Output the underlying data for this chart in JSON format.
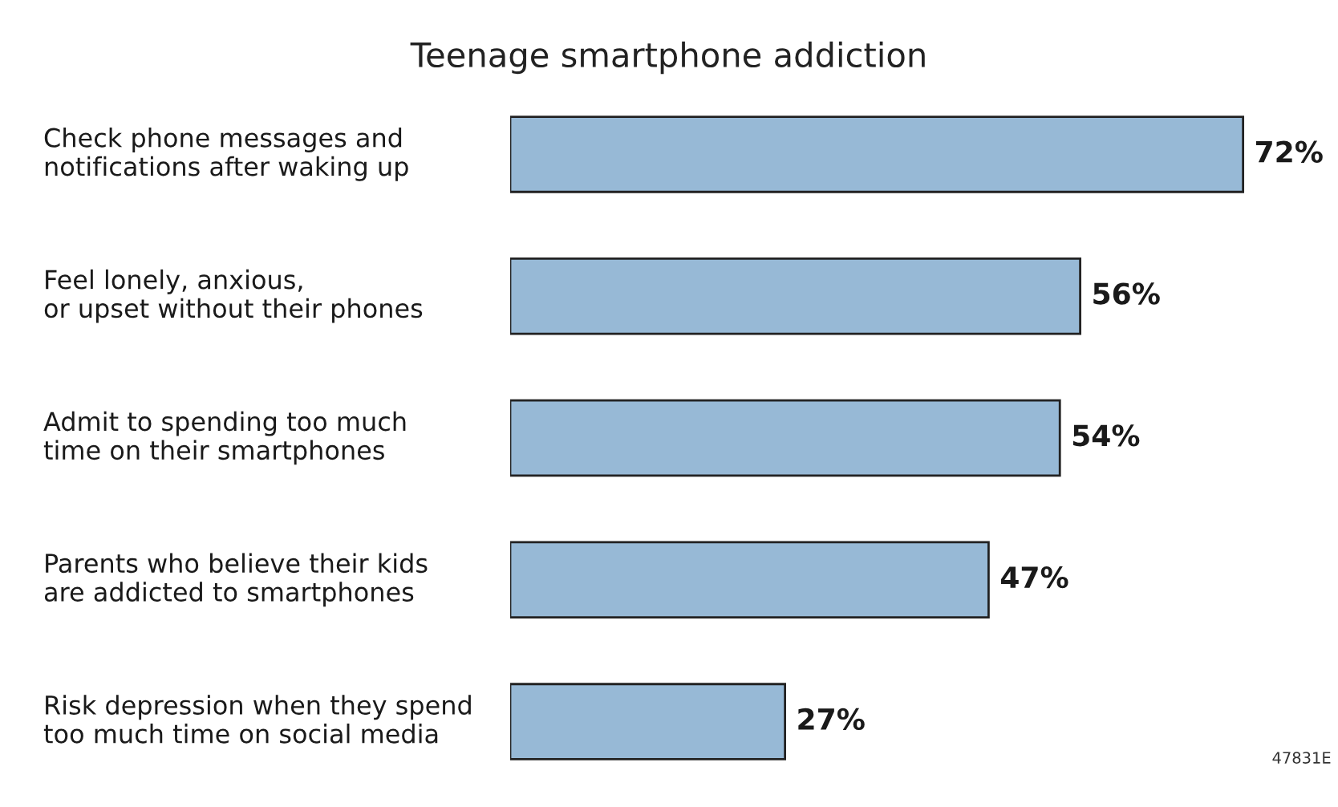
{
  "chart_data": {
    "type": "bar",
    "orientation": "horizontal",
    "title": "Teenage smartphone addiction",
    "categories": [
      "Check phone messages and\nnotifications after waking up",
      "Feel lonely, anxious,\nor upset without their phones",
      "Admit to spending too much\ntime on their smartphones",
      "Parents who believe their kids\nare addicted to smartphones",
      "Risk depression when they spend\ntoo much time on social media"
    ],
    "values": [
      72,
      56,
      54,
      47,
      27
    ],
    "value_labels": [
      "72%",
      "56%",
      "54%",
      "47%",
      "27%"
    ],
    "color": "#97b9d6",
    "annotations": [
      "47831E"
    ],
    "tick_labels": "y"
  }
}
